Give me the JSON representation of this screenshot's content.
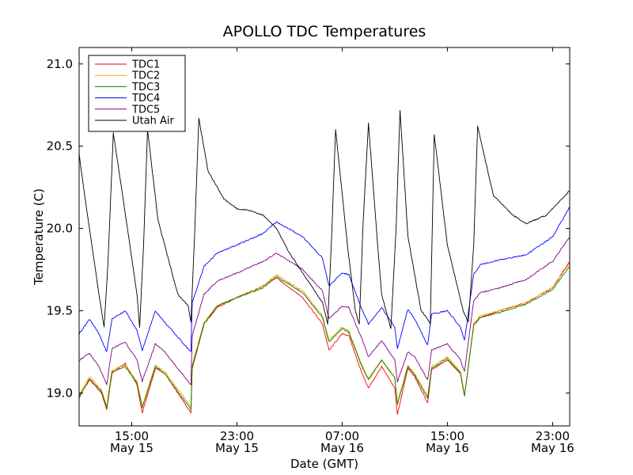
{
  "chart_data": {
    "type": "line",
    "title": "APOLLO TDC Temperatures",
    "xlabel": "Date (GMT)",
    "ylabel": "Temperature (C)",
    "x_unit": "hours since May 15 11:00 GMT",
    "xlim": [
      0,
      37.3
    ],
    "ylim": [
      18.8,
      21.1
    ],
    "y_ticks": [
      {
        "value": 19.0,
        "label": "19.0"
      },
      {
        "value": 19.5,
        "label": "19.5"
      },
      {
        "value": 20.0,
        "label": "20.0"
      },
      {
        "value": 20.5,
        "label": "20.5"
      },
      {
        "value": 21.0,
        "label": "21.0"
      }
    ],
    "x_ticks": [
      {
        "value": 4,
        "time": "15:00",
        "date": "May 15"
      },
      {
        "value": 12,
        "time": "23:00",
        "date": "May 15"
      },
      {
        "value": 20,
        "time": "07:00",
        "date": "May 16"
      },
      {
        "value": 28,
        "time": "15:00",
        "date": "May 16"
      },
      {
        "value": 36,
        "time": "23:00",
        "date": "May 16"
      }
    ],
    "legend_position": "top-left",
    "series": [
      {
        "name": "TDC1",
        "color": "#ff0000",
        "x": [
          0,
          0.8,
          1.7,
          2.1,
          2.5,
          3.5,
          4.4,
          4.8,
          5.8,
          6.5,
          8.5,
          8.6,
          9.5,
          10.5,
          12,
          14,
          15,
          17,
          18.5,
          19,
          20,
          20.5,
          21.5,
          22,
          23,
          24,
          24.2,
          25,
          25.5,
          26.5,
          26.8,
          28,
          29,
          29.3,
          30,
          30.5,
          32,
          34,
          36,
          37.3
        ],
        "values": [
          18.98,
          19.08,
          19.0,
          18.9,
          19.12,
          19.18,
          19.05,
          18.88,
          19.15,
          19.12,
          18.88,
          19.15,
          19.42,
          19.52,
          19.58,
          19.65,
          19.7,
          19.58,
          19.42,
          19.26,
          19.36,
          19.35,
          19.12,
          19.03,
          19.16,
          19.03,
          18.87,
          19.15,
          19.1,
          18.94,
          19.14,
          19.2,
          19.12,
          18.98,
          19.42,
          19.46,
          19.5,
          19.55,
          19.64,
          19.8
        ]
      },
      {
        "name": "TDC2",
        "color": "#ffaa00",
        "x": [
          0,
          0.8,
          1.7,
          2.1,
          2.5,
          3.5,
          4.4,
          4.8,
          5.8,
          6.5,
          8.5,
          8.6,
          9.5,
          10.5,
          12,
          14,
          15,
          17,
          18.5,
          19,
          20,
          20.5,
          21.5,
          22,
          23,
          24,
          24.2,
          25,
          25.5,
          26.5,
          26.8,
          28,
          29,
          29.3,
          30,
          30.5,
          32,
          34,
          36,
          37.3
        ],
        "values": [
          18.99,
          19.1,
          19.02,
          18.92,
          19.14,
          19.17,
          19.07,
          18.92,
          19.17,
          19.13,
          18.92,
          19.17,
          19.43,
          19.53,
          19.58,
          19.65,
          19.72,
          19.62,
          19.47,
          19.32,
          19.4,
          19.38,
          19.17,
          19.09,
          19.2,
          19.1,
          18.94,
          19.17,
          19.12,
          18.98,
          19.16,
          19.22,
          19.13,
          18.99,
          19.42,
          19.47,
          19.5,
          19.55,
          19.64,
          19.79
        ]
      },
      {
        "name": "TDC3",
        "color": "#008000",
        "x": [
          0,
          0.8,
          1.7,
          2.1,
          2.5,
          3.5,
          4.4,
          4.8,
          5.8,
          6.5,
          8.5,
          8.6,
          9.5,
          10.5,
          12,
          14,
          15,
          17,
          18.5,
          19,
          20,
          20.5,
          21.5,
          22,
          23,
          24,
          24.2,
          25,
          25.5,
          26.5,
          26.8,
          28,
          29,
          29.3,
          30,
          30.5,
          32,
          34,
          36,
          37.3
        ],
        "values": [
          18.97,
          19.09,
          19.01,
          18.91,
          19.13,
          19.16,
          19.06,
          18.91,
          19.16,
          19.12,
          18.9,
          19.16,
          19.42,
          19.53,
          19.58,
          19.64,
          19.71,
          19.61,
          19.46,
          19.31,
          19.39,
          19.37,
          19.16,
          19.08,
          19.2,
          19.09,
          18.93,
          19.16,
          19.11,
          18.97,
          19.15,
          19.21,
          19.12,
          18.98,
          19.41,
          19.46,
          19.49,
          19.54,
          19.63,
          19.77
        ]
      },
      {
        "name": "TDC4",
        "color": "#0000ff",
        "x": [
          0,
          0.8,
          1.5,
          2.1,
          2.5,
          3.5,
          4.4,
          4.8,
          5.8,
          6.5,
          8.5,
          8.6,
          9.5,
          10.5,
          12,
          14,
          15,
          17,
          18.5,
          19,
          20,
          20.5,
          21.5,
          22,
          23,
          24,
          24.2,
          25,
          25.5,
          26.5,
          26.8,
          28,
          29,
          29.3,
          30,
          30.5,
          32,
          34,
          36,
          37.3
        ],
        "values": [
          19.36,
          19.45,
          19.36,
          19.25,
          19.45,
          19.5,
          19.38,
          19.26,
          19.5,
          19.43,
          19.25,
          19.55,
          19.77,
          19.85,
          19.9,
          19.97,
          20.04,
          19.95,
          19.82,
          19.65,
          19.73,
          19.72,
          19.51,
          19.42,
          19.52,
          19.4,
          19.27,
          19.51,
          19.45,
          19.29,
          19.48,
          19.5,
          19.4,
          19.32,
          19.72,
          19.78,
          19.81,
          19.84,
          19.95,
          20.13
        ]
      },
      {
        "name": "TDC5",
        "color": "#800080",
        "x": [
          0,
          0.8,
          1.5,
          2.1,
          2.5,
          3.5,
          4.4,
          4.8,
          5.8,
          6.5,
          8.5,
          8.6,
          9.5,
          10.5,
          12,
          14,
          15,
          17,
          18.5,
          19,
          20,
          20.5,
          21.5,
          22,
          23,
          24,
          24.2,
          25,
          25.5,
          26.5,
          26.8,
          28,
          29,
          29.3,
          30,
          30.5,
          32,
          34,
          36,
          37.3
        ],
        "values": [
          19.2,
          19.24,
          19.16,
          19.05,
          19.27,
          19.31,
          19.2,
          19.07,
          19.3,
          19.25,
          19.05,
          19.35,
          19.6,
          19.68,
          19.73,
          19.8,
          19.85,
          19.75,
          19.62,
          19.45,
          19.53,
          19.52,
          19.33,
          19.22,
          19.32,
          19.2,
          19.07,
          19.25,
          19.22,
          19.08,
          19.26,
          19.3,
          19.2,
          19.13,
          19.56,
          19.61,
          19.64,
          19.69,
          19.8,
          19.95
        ]
      },
      {
        "name": "Utah Air",
        "color": "#000000",
        "x": [
          0,
          0.6,
          1.6,
          1.9,
          2.2,
          2.6,
          3.4,
          4.4,
          4.6,
          4.9,
          5.2,
          6.0,
          7.5,
          8.3,
          8.5,
          8.8,
          9.1,
          9.8,
          11,
          12,
          13,
          14,
          15,
          16,
          18.5,
          18.9,
          19.2,
          19.5,
          20.4,
          21.0,
          21.3,
          21.6,
          22.0,
          22.6,
          23.0,
          23.7,
          24.1,
          24.4,
          25.0,
          26.0,
          26.5,
          26.7,
          27.0,
          28.0,
          29.2,
          29.6,
          30.0,
          30.3,
          31.5,
          33.0,
          34.0,
          35.5,
          37.3
        ],
        "values": [
          20.45,
          20.1,
          19.55,
          19.4,
          19.8,
          20.58,
          20.15,
          19.6,
          19.4,
          19.9,
          20.6,
          20.05,
          19.6,
          19.53,
          19.43,
          20.0,
          20.67,
          20.35,
          20.18,
          20.12,
          20.11,
          20.08,
          20.0,
          19.85,
          19.55,
          19.42,
          19.95,
          20.6,
          19.9,
          19.5,
          19.42,
          20.05,
          20.64,
          20.0,
          19.6,
          19.39,
          20.0,
          20.72,
          19.95,
          19.5,
          19.45,
          19.42,
          20.57,
          19.9,
          19.5,
          19.43,
          19.9,
          20.62,
          20.2,
          20.08,
          20.03,
          20.08,
          20.23
        ]
      }
    ]
  }
}
